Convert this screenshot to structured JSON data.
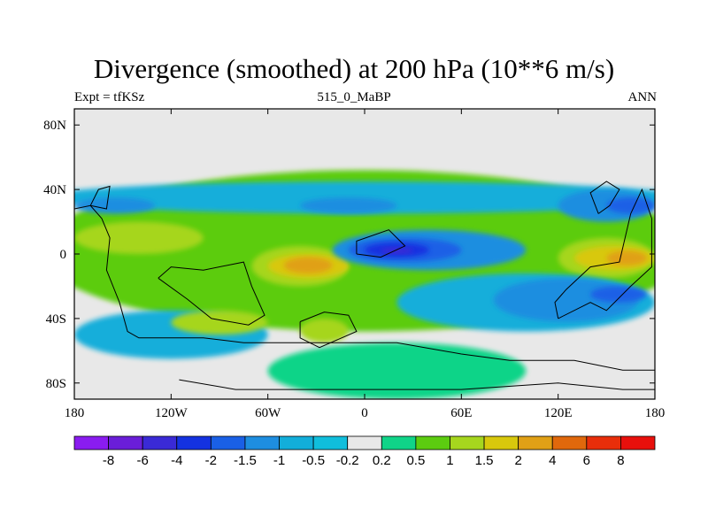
{
  "chart_data": {
    "type": "heatmap",
    "title": "Divergence (smoothed) at 200 hPa (10**6 m/s)",
    "subtitle_left": "Expt = tfKSz",
    "subtitle_center": "515_0_MaBP",
    "subtitle_right": "ANN",
    "xlim": [
      -180,
      180
    ],
    "ylim": [
      -90,
      90
    ],
    "x_ticks": [
      {
        "value": -180,
        "label": "180"
      },
      {
        "value": -120,
        "label": "120W"
      },
      {
        "value": -60,
        "label": "60W"
      },
      {
        "value": 0,
        "label": "0"
      },
      {
        "value": 60,
        "label": "60E"
      },
      {
        "value": 120,
        "label": "120E"
      },
      {
        "value": 180,
        "label": "180"
      }
    ],
    "y_ticks": [
      {
        "value": 80,
        "label": "80N"
      },
      {
        "value": 40,
        "label": "40N"
      },
      {
        "value": 0,
        "label": "0"
      },
      {
        "value": -40,
        "label": "40S"
      },
      {
        "value": -80,
        "label": "80S"
      }
    ],
    "colorbar": {
      "labels": [
        "-8",
        "-6",
        "-4",
        "-2",
        "-1.5",
        "-1",
        "-0.5",
        "-0.2",
        "0.2",
        "0.5",
        "1",
        "1.5",
        "2",
        "4",
        "6",
        "8"
      ],
      "colors": [
        "#8a1cf0",
        "#6a1ed8",
        "#3a2ad6",
        "#1432e0",
        "#1a60e6",
        "#1e8ee0",
        "#12aeda",
        "#10bedc",
        "#e8e8e8",
        "#10d488",
        "#5ccc10",
        "#a6d61e",
        "#d8c80c",
        "#e0a016",
        "#e0680c",
        "#e82e0a",
        "#e8100c"
      ]
    },
    "fields": [
      {
        "value": "0.5",
        "lon": [
          -180,
          180
        ],
        "lat": [
          -48,
          52
        ]
      },
      {
        "value": "-0.5",
        "lon": [
          -180,
          180
        ],
        "lat": [
          25,
          45
        ]
      },
      {
        "value": "-1",
        "lon": [
          -180,
          -130
        ],
        "lat": [
          25,
          35
        ]
      },
      {
        "value": "-1",
        "lon": [
          -40,
          20
        ],
        "lat": [
          25,
          35
        ]
      },
      {
        "value": "-1",
        "lon": [
          120,
          180
        ],
        "lat": [
          20,
          40
        ]
      },
      {
        "value": "-1.5",
        "lon": [
          150,
          180
        ],
        "lat": [
          25,
          35
        ]
      },
      {
        "value": "1",
        "lon": [
          -180,
          -100
        ],
        "lat": [
          0,
          20
        ]
      },
      {
        "value": "1",
        "lon": [
          -70,
          -10
        ],
        "lat": [
          -20,
          5
        ]
      },
      {
        "value": "1.5",
        "lon": [
          -60,
          -10
        ],
        "lat": [
          -15,
          0
        ]
      },
      {
        "value": "2",
        "lon": [
          -50,
          -20
        ],
        "lat": [
          -12,
          -2
        ]
      },
      {
        "value": "-1",
        "lon": [
          -20,
          100
        ],
        "lat": [
          -10,
          15
        ]
      },
      {
        "value": "-1.5",
        "lon": [
          -10,
          60
        ],
        "lat": [
          -5,
          10
        ]
      },
      {
        "value": "-2",
        "lon": [
          0,
          40
        ],
        "lat": [
          -2,
          7
        ]
      },
      {
        "value": "-4",
        "lon": [
          10,
          30
        ],
        "lat": [
          0,
          4
        ]
      },
      {
        "value": "1",
        "lon": [
          120,
          180
        ],
        "lat": [
          -15,
          10
        ]
      },
      {
        "value": "1.5",
        "lon": [
          130,
          180
        ],
        "lat": [
          -10,
          5
        ]
      },
      {
        "value": "2",
        "lon": [
          150,
          175
        ],
        "lat": [
          -7,
          2
        ]
      },
      {
        "value": "-0.5",
        "lon": [
          20,
          180
        ],
        "lat": [
          -48,
          -12
        ]
      },
      {
        "value": "-1",
        "lon": [
          80,
          170
        ],
        "lat": [
          -42,
          -15
        ]
      },
      {
        "value": "-1.5",
        "lon": [
          140,
          175
        ],
        "lat": [
          -30,
          -20
        ]
      },
      {
        "value": "-0.5",
        "lon": [
          -180,
          -60
        ],
        "lat": [
          -65,
          -35
        ]
      },
      {
        "value": "1",
        "lon": [
          -120,
          -60
        ],
        "lat": [
          -50,
          -35
        ]
      },
      {
        "value": "1",
        "lon": [
          -40,
          -10
        ],
        "lat": [
          -55,
          -40
        ]
      },
      {
        "value": "0.2",
        "lon": [
          -60,
          100
        ],
        "lat": [
          -90,
          -55
        ]
      }
    ]
  }
}
